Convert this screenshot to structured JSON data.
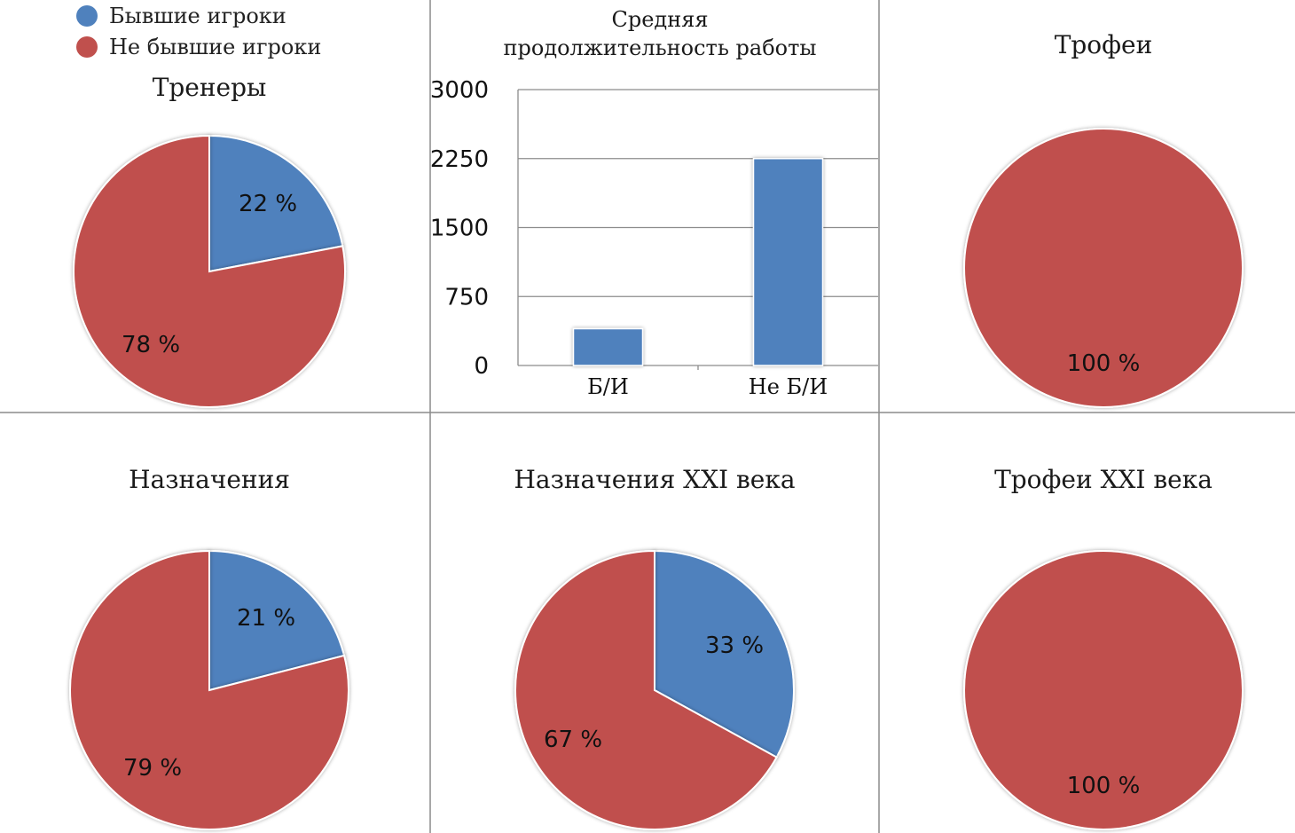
{
  "colors": {
    "former_players": "#4f81bd",
    "not_former_players": "#c0504d",
    "grid": "#8c8c8c",
    "divider": "#8c8c8c"
  },
  "legend": {
    "items": [
      {
        "label": "Бывшие игроки",
        "color": "#4f81bd"
      },
      {
        "label": "Не бывшие игроки",
        "color": "#c0504d"
      }
    ]
  },
  "chart_data": [
    {
      "type": "pie",
      "title": "Тренеры",
      "slices": [
        {
          "name": "Бывшие игроки",
          "value": 22,
          "label": "22 %",
          "color": "#4f81bd"
        },
        {
          "name": "Не бывшие игроки",
          "value": 78,
          "label": "78 %",
          "color": "#c0504d"
        }
      ]
    },
    {
      "type": "bar",
      "title": "Средняя продолжительность работы",
      "title_lines": [
        "Средняя",
        "продолжительность работы"
      ],
      "categories": [
        "Б/И",
        "Не Б/И"
      ],
      "values": [
        400,
        2250
      ],
      "ylim": [
        0,
        3000
      ],
      "yticks": [
        "0",
        "750",
        "1500",
        "2250",
        "3000"
      ],
      "xlabel": "",
      "ylabel": "",
      "grid": true,
      "color": "#4f81bd"
    },
    {
      "type": "pie",
      "title": "Трофеи",
      "slices": [
        {
          "name": "Не бывшие игроки",
          "value": 100,
          "label": "100 %",
          "color": "#c0504d"
        }
      ]
    },
    {
      "type": "pie",
      "title": "Назначения",
      "slices": [
        {
          "name": "Бывшие игроки",
          "value": 21,
          "label": "21 %",
          "color": "#4f81bd"
        },
        {
          "name": "Не бывшие игроки",
          "value": 79,
          "label": "79 %",
          "color": "#c0504d"
        }
      ]
    },
    {
      "type": "pie",
      "title": "Назначения XXI века",
      "slices": [
        {
          "name": "Бывшие игроки",
          "value": 33,
          "label": "33 %",
          "color": "#4f81bd"
        },
        {
          "name": "Не бывшие игроки",
          "value": 67,
          "label": "67 %",
          "color": "#c0504d"
        }
      ]
    },
    {
      "type": "pie",
      "title": "Трофеи XXI века",
      "slices": [
        {
          "name": "Не бывшие игроки",
          "value": 100,
          "label": "100 %",
          "color": "#c0504d"
        }
      ]
    }
  ]
}
